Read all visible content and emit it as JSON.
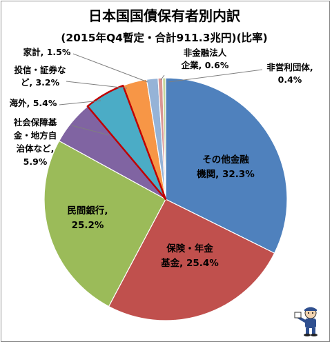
{
  "chart_data": {
    "type": "pie",
    "title": "日本国国債保有者別内訳",
    "subtitle": "(2015年Q4暫定・合計911.3兆円)(比率)",
    "slices": [
      {
        "label": [
          "その他金融",
          "機関, 32.3%"
        ],
        "value": 32.3,
        "color": "#4f81bd"
      },
      {
        "label": [
          "保険・年金",
          "基金, 25.4%"
        ],
        "value": 25.4,
        "color": "#c0504d"
      },
      {
        "label": [
          "民間銀行,",
          "25.2%"
        ],
        "value": 25.2,
        "color": "#9bbb59"
      },
      {
        "label": [
          "社会保障基",
          "金・地方自",
          "治体など,",
          "5.9%"
        ],
        "value": 5.9,
        "color": "#8064a2"
      },
      {
        "label": [
          "海外, 5.4%"
        ],
        "value": 5.4,
        "color": "#4bacc6",
        "highlight": "#c00000"
      },
      {
        "label": [
          "投信・証券な",
          "ど, 3.2%"
        ],
        "value": 3.2,
        "color": "#f79646"
      },
      {
        "label": [
          "家計, 1.5%"
        ],
        "value": 1.5,
        "color": "#95b3d7"
      },
      {
        "label": [
          "非金融法人",
          "企業, 0.6%"
        ],
        "value": 0.6,
        "color": "#da9694"
      },
      {
        "label": [
          "非営利団体,",
          "0.4%"
        ],
        "value": 0.4,
        "color": "#c4d79b"
      }
    ]
  },
  "mascot": {
    "icon": "person-mascot-icon"
  }
}
